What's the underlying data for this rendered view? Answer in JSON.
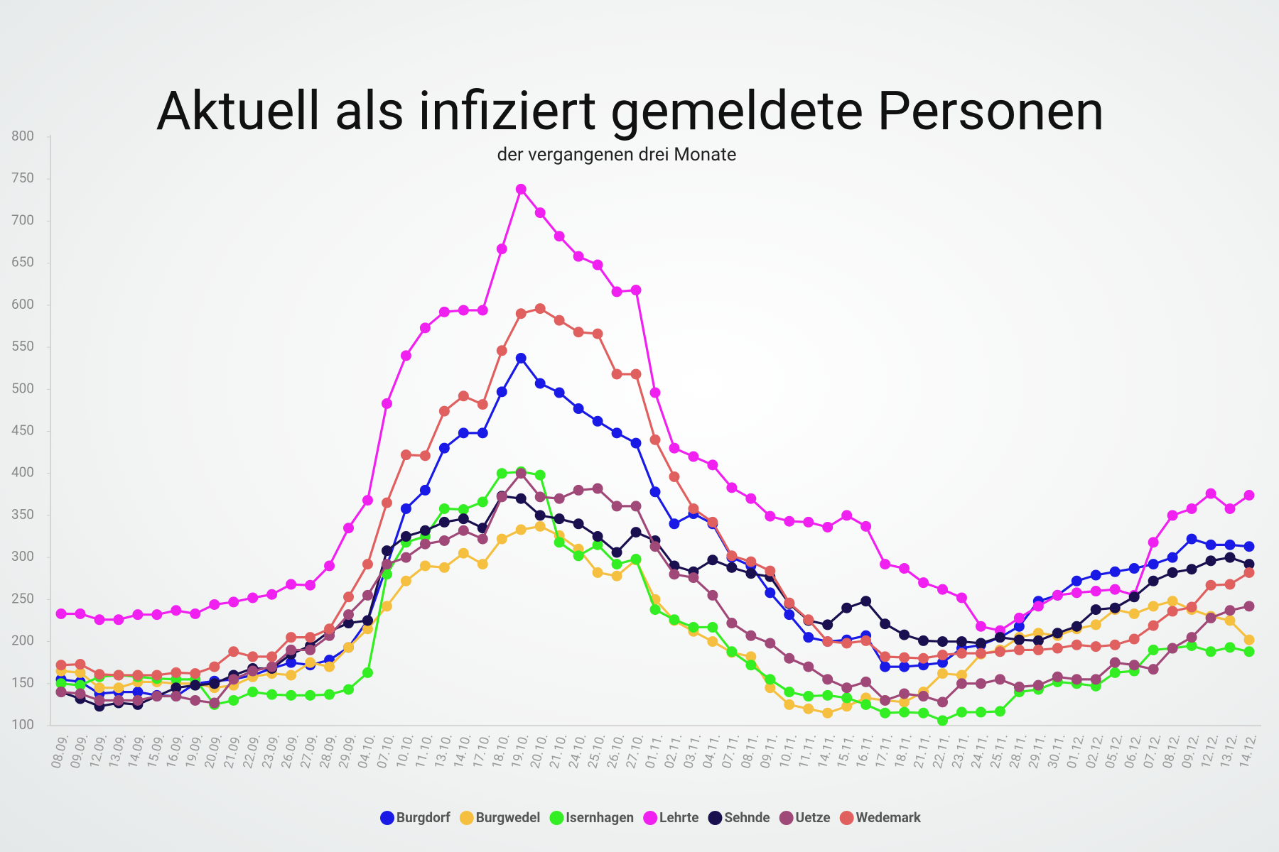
{
  "chart_data": {
    "type": "line",
    "title": "Aktuell als infiziert gemeldete Personen",
    "subtitle": "der vergangenen drei Monate",
    "categories": [
      "08.09.",
      "09.09.",
      "12.09.",
      "13.09.",
      "14.09.",
      "15.09.",
      "16.09.",
      "19.09.",
      "20.09.",
      "21.09.",
      "22.09.",
      "23.09.",
      "26.09.",
      "27.09.",
      "28.09.",
      "29.09.",
      "04.10.",
      "07.10.",
      "10.10.",
      "11.10.",
      "13.10.",
      "14.10.",
      "17.10.",
      "18.10.",
      "19.10.",
      "20.10.",
      "21.10.",
      "24.10.",
      "25.10.",
      "26.10.",
      "27.10.",
      "01.11.",
      "02.11.",
      "03.11.",
      "04.11.",
      "07.11.",
      "08.11.",
      "09.11.",
      "10.11.",
      "11.11.",
      "14.11.",
      "15.11.",
      "16.11.",
      "17.11.",
      "18.11.",
      "21.11.",
      "22.11.",
      "23.11.",
      "24.11.",
      "25.11.",
      "28.11.",
      "29.11.",
      "30.11.",
      "01.12.",
      "02.12.",
      "05.12.",
      "06.12.",
      "07.12.",
      "08.12.",
      "09.12.",
      "12.12.",
      "13.12.",
      "14.12."
    ],
    "series": [
      {
        "name": "Burgdorf",
        "color": "#1a1ae6",
        "values": [
          155,
          152,
          138,
          140,
          140,
          136,
          135,
          150,
          153,
          155,
          160,
          168,
          175,
          172,
          178,
          193,
          225,
          290,
          358,
          380,
          430,
          448,
          448,
          497,
          537,
          507,
          496,
          477,
          462,
          448,
          436,
          378,
          340,
          352,
          340,
          300,
          290,
          258,
          232,
          205,
          200,
          202,
          207,
          170,
          170,
          172,
          175,
          192,
          196,
          205,
          218,
          248,
          255,
          272,
          279,
          283,
          287,
          292,
          300,
          322,
          315,
          315,
          313
        ]
      },
      {
        "name": "Burgwedel",
        "color": "#f5c040",
        "values": [
          165,
          163,
          145,
          145,
          152,
          152,
          150,
          150,
          145,
          148,
          158,
          162,
          160,
          175,
          170,
          193,
          215,
          242,
          272,
          290,
          288,
          305,
          292,
          322,
          333,
          337,
          326,
          310,
          282,
          278,
          297,
          250,
          225,
          212,
          200,
          187,
          182,
          145,
          125,
          120,
          115,
          123,
          133,
          130,
          128,
          140,
          162,
          160,
          185,
          190,
          205,
          210,
          207,
          215,
          220,
          238,
          233,
          242,
          248,
          238,
          230,
          225,
          202
        ]
      },
      {
        "name": "Isernhagen",
        "color": "#33ee22",
        "values": [
          150,
          148,
          158,
          160,
          158,
          156,
          155,
          155,
          125,
          130,
          140,
          137,
          136,
          136,
          137,
          143,
          163,
          280,
          318,
          325,
          358,
          357,
          366,
          400,
          402,
          398,
          318,
          302,
          315,
          292,
          298,
          238,
          226,
          217,
          217,
          188,
          172,
          155,
          140,
          135,
          136,
          133,
          125,
          115,
          116,
          115,
          106,
          116,
          116,
          117,
          140,
          143,
          152,
          150,
          147,
          163,
          165,
          190,
          192,
          195,
          188,
          193,
          188
        ]
      },
      {
        "name": "Lehrte",
        "color": "#f020f0",
        "values": [
          233,
          233,
          226,
          226,
          232,
          232,
          237,
          233,
          244,
          247,
          252,
          256,
          268,
          267,
          290,
          335,
          368,
          483,
          540,
          573,
          592,
          594,
          594,
          667,
          738,
          710,
          682,
          658,
          648,
          616,
          618,
          496,
          430,
          420,
          410,
          383,
          370,
          349,
          343,
          342,
          336,
          350,
          337,
          292,
          287,
          270,
          262,
          252,
          218,
          213,
          228,
          242,
          255,
          258,
          260,
          262,
          255,
          318,
          350,
          358,
          376,
          358,
          374
        ]
      },
      {
        "name": "Sehnde",
        "color": "#1a1050",
        "values": [
          140,
          132,
          123,
          127,
          125,
          135,
          145,
          148,
          150,
          160,
          168,
          168,
          185,
          195,
          212,
          222,
          225,
          308,
          325,
          332,
          342,
          346,
          335,
          373,
          370,
          350,
          346,
          340,
          325,
          306,
          330,
          320,
          290,
          283,
          297,
          288,
          281,
          277,
          245,
          225,
          220,
          240,
          248,
          221,
          208,
          201,
          200,
          200,
          198,
          205,
          202,
          201,
          210,
          218,
          238,
          240,
          253,
          272,
          282,
          286,
          296,
          300,
          292
        ]
      },
      {
        "name": "Uetze",
        "color": "#a04878",
        "values": [
          140,
          138,
          130,
          130,
          130,
          135,
          135,
          130,
          127,
          155,
          165,
          170,
          190,
          190,
          207,
          232,
          255,
          292,
          300,
          316,
          320,
          332,
          322,
          372,
          400,
          372,
          370,
          380,
          382,
          361,
          361,
          313,
          280,
          276,
          255,
          222,
          207,
          198,
          180,
          170,
          155,
          145,
          152,
          130,
          138,
          135,
          128,
          150,
          150,
          155,
          146,
          148,
          158,
          155,
          155,
          175,
          172,
          167,
          192,
          205,
          228,
          237,
          242
        ]
      },
      {
        "name": "Wedemark",
        "color": "#e06060",
        "values": [
          172,
          173,
          161,
          160,
          160,
          160,
          163,
          162,
          170,
          188,
          182,
          182,
          205,
          205,
          215,
          253,
          292,
          365,
          422,
          421,
          474,
          492,
          482,
          546,
          590,
          596,
          582,
          568,
          566,
          518,
          518,
          440,
          396,
          358,
          342,
          302,
          295,
          284,
          246,
          226,
          200,
          198,
          201,
          182,
          181,
          180,
          184,
          186,
          186,
          188,
          190,
          190,
          192,
          196,
          194,
          196,
          203,
          219,
          236,
          241,
          267,
          268,
          282
        ]
      }
    ],
    "ylim": [
      100,
      800
    ],
    "yticks": [
      100,
      150,
      200,
      250,
      300,
      350,
      400,
      450,
      500,
      550,
      600,
      650,
      700,
      750,
      800
    ]
  }
}
